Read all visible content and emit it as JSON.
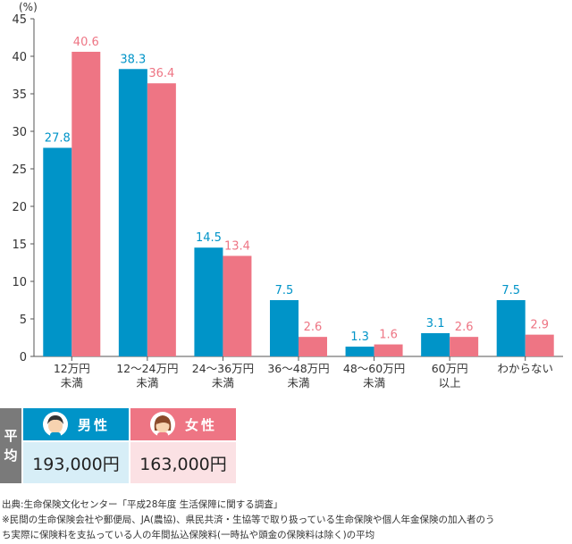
{
  "chart_data": {
    "type": "bar",
    "ylabel": "(%)",
    "ylim": [
      0,
      45
    ],
    "yticks": [
      0,
      5,
      10,
      15,
      20,
      25,
      30,
      35,
      40,
      45
    ],
    "categories": [
      [
        "12万円",
        "未満"
      ],
      [
        "12～24万円",
        "未満"
      ],
      [
        "24～36万円",
        "未満"
      ],
      [
        "36～48万円",
        "未満"
      ],
      [
        "48～60万円",
        "未満"
      ],
      [
        "60万円",
        "以上"
      ],
      [
        "わからない"
      ]
    ],
    "series": [
      {
        "name": "男性",
        "color": "#0094c8",
        "values": [
          27.8,
          38.3,
          14.5,
          7.5,
          1.3,
          3.1,
          7.5
        ]
      },
      {
        "name": "女性",
        "color": "#ee7584",
        "values": [
          40.6,
          36.4,
          13.4,
          2.6,
          1.6,
          2.6,
          2.9
        ]
      }
    ]
  },
  "average": {
    "label_chars": [
      "平",
      "均"
    ],
    "male": {
      "label": "男性",
      "value": "193,000円",
      "icon": "male-avatar-icon"
    },
    "female": {
      "label": "女性",
      "value": "163,000円",
      "icon": "female-avatar-icon"
    }
  },
  "notes": {
    "source": "出典:生命保険文化センター「平成28年度 生活保障に関する調査」",
    "footnote_line1": "※民間の生命保険会社や郵便局、JA(農協)、県民共済・生協等で取り扱っている生命保険や個人年金保険の加入者のう",
    "footnote_line2": "ち実際に保険料を支払っている人の年間払込保険料(一時払や頭金の保険料は除く)の平均"
  }
}
